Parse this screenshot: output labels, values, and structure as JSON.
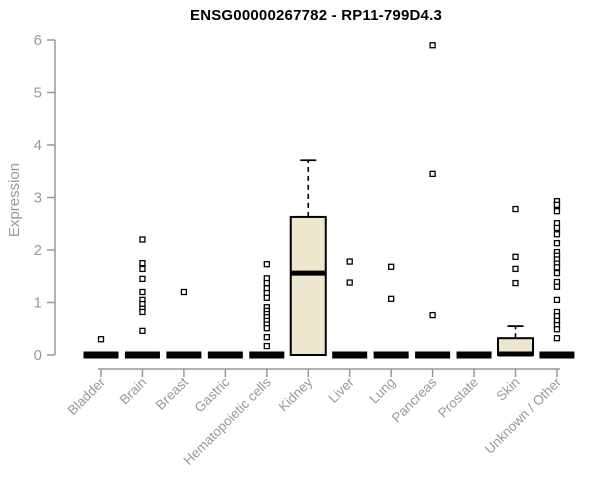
{
  "page": {
    "background": "#ffffff"
  },
  "chart_data": {
    "type": "boxplot",
    "title": "ENSG00000267782 - RP11-799D4.3",
    "ylabel": "Expression",
    "xlabel": "",
    "ylim": [
      0,
      6
    ],
    "yticks": [
      0,
      1,
      2,
      3,
      4,
      5,
      6
    ],
    "grid": false,
    "legend": false,
    "categories": [
      "Bladder",
      "Brain",
      "Breast",
      "Gastric",
      "Hematopoietic cells",
      "Kidney",
      "Liver",
      "Lung",
      "Pancreas",
      "Prostate",
      "Skin",
      "Unknown / Other"
    ],
    "boxes": [
      {
        "category": "Bladder",
        "q1": 0,
        "median": 0,
        "q3": 0,
        "whisker_low": 0,
        "whisker_high": 0,
        "outliers": [
          0.3
        ]
      },
      {
        "category": "Brain",
        "q1": 0,
        "median": 0,
        "q3": 0,
        "whisker_low": 0,
        "whisker_high": 0,
        "outliers": [
          2.2,
          1.75,
          1.64,
          1.45,
          1.2,
          1.05,
          0.97,
          0.88,
          0.82,
          0.46
        ]
      },
      {
        "category": "Breast",
        "q1": 0,
        "median": 0,
        "q3": 0,
        "whisker_low": 0,
        "whisker_high": 0,
        "outliers": [
          1.2
        ]
      },
      {
        "category": "Gastric",
        "q1": 0,
        "median": 0,
        "q3": 0,
        "whisker_low": 0,
        "whisker_high": 0,
        "outliers": []
      },
      {
        "category": "Hematopoietic cells",
        "q1": 0,
        "median": 0,
        "q3": 0,
        "whisker_low": 0,
        "whisker_high": 0,
        "outliers": [
          1.73,
          1.46,
          1.37,
          1.27,
          1.18,
          1.09,
          0.91,
          0.84,
          0.78,
          0.72,
          0.65,
          0.58,
          0.51,
          0.34,
          0.17
        ]
      },
      {
        "category": "Kidney",
        "q1": 0,
        "median": 1.56,
        "q3": 2.63,
        "whisker_low": 0,
        "whisker_high": 3.71,
        "outliers": []
      },
      {
        "category": "Liver",
        "q1": 0,
        "median": 0,
        "q3": 0,
        "whisker_low": 0,
        "whisker_high": 0,
        "outliers": [
          1.78,
          1.38
        ]
      },
      {
        "category": "Lung",
        "q1": 0,
        "median": 0,
        "q3": 0,
        "whisker_low": 0,
        "whisker_high": 0,
        "outliers": [
          1.68,
          1.07
        ]
      },
      {
        "category": "Pancreas",
        "q1": 0,
        "median": 0,
        "q3": 0,
        "whisker_low": 0,
        "whisker_high": 0,
        "outliers": [
          5.9,
          3.45,
          0.76
        ]
      },
      {
        "category": "Prostate",
        "q1": 0,
        "median": 0,
        "q3": 0,
        "whisker_low": 0,
        "whisker_high": 0,
        "outliers": []
      },
      {
        "category": "Skin",
        "q1": 0,
        "median": 0.02,
        "q3": 0.32,
        "whisker_low": 0,
        "whisker_high": 0.55,
        "outliers": [
          2.78,
          1.87,
          1.64,
          1.37
        ]
      },
      {
        "category": "Unknown / Other",
        "q1": 0,
        "median": 0,
        "q3": 0,
        "whisker_low": 0,
        "whisker_high": 0,
        "outliers": [
          2.93,
          2.86,
          2.74,
          2.51,
          2.42,
          2.3,
          2.13,
          1.96,
          1.89,
          1.82,
          1.74,
          1.67,
          1.56,
          1.39,
          1.3,
          1.05,
          0.82,
          0.74,
          0.65,
          0.57,
          0.49,
          0.32
        ]
      }
    ],
    "colors": {
      "box_fill": "#EDE7CE",
      "box_border": "#000000",
      "median": "#000000",
      "whisker": "#000000",
      "outlier_stroke": "#000000",
      "outlier_fill": "#ffffff",
      "axis": "#999999",
      "tick_label": "#999999",
      "title": "#000000",
      "background": "#ffffff"
    }
  }
}
